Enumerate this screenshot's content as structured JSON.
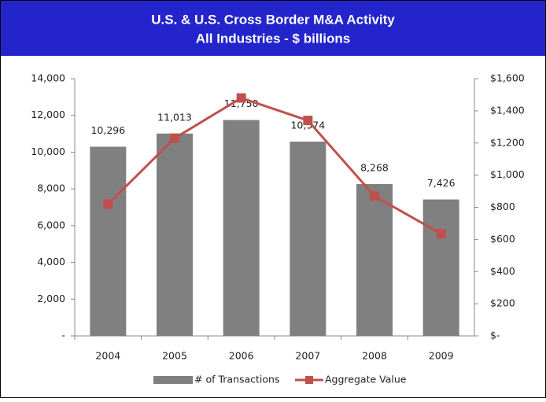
{
  "chart_data": {
    "type": "bar",
    "title": "U.S. & U.S. Cross Border  M&A Activity",
    "subtitle": "All Industries - $ billions",
    "categories": [
      "2004",
      "2005",
      "2006",
      "2007",
      "2008",
      "2009"
    ],
    "series": [
      {
        "name": "# of Transactions",
        "type": "bar",
        "color": "#808080",
        "values": [
          10296,
          11013,
          11750,
          10574,
          8268,
          7426
        ],
        "value_labels": [
          "10,296",
          "11,013",
          "11,750",
          "10,574",
          "8,268",
          "7,426"
        ]
      },
      {
        "name": "Aggregate Value",
        "type": "line",
        "axis": "y2",
        "color": "#c0504d",
        "values": [
          820,
          1230,
          1480,
          1340,
          870,
          635
        ]
      }
    ],
    "ylim": [
      0,
      14000
    ],
    "yticks": [
      {
        "value": 0,
        "label": "-"
      },
      {
        "value": 2000,
        "label": "2,000"
      },
      {
        "value": 4000,
        "label": "4,000"
      },
      {
        "value": 6000,
        "label": "6,000"
      },
      {
        "value": 8000,
        "label": "8,000"
      },
      {
        "value": 10000,
        "label": "10,000"
      },
      {
        "value": 12000,
        "label": "12,000"
      },
      {
        "value": 14000,
        "label": "14,000"
      }
    ],
    "y2lim": [
      0,
      1600
    ],
    "y2ticks": [
      {
        "value": 0,
        "label": "$-"
      },
      {
        "value": 200,
        "label": "$200"
      },
      {
        "value": 400,
        "label": "$400"
      },
      {
        "value": 600,
        "label": "$600"
      },
      {
        "value": 800,
        "label": "$800"
      },
      {
        "value": 1000,
        "label": "$1,000"
      },
      {
        "value": 1200,
        "label": "$1,200"
      },
      {
        "value": 1400,
        "label": "$1,400"
      },
      {
        "value": 1600,
        "label": "$1,600"
      }
    ],
    "legend": "bottom"
  }
}
